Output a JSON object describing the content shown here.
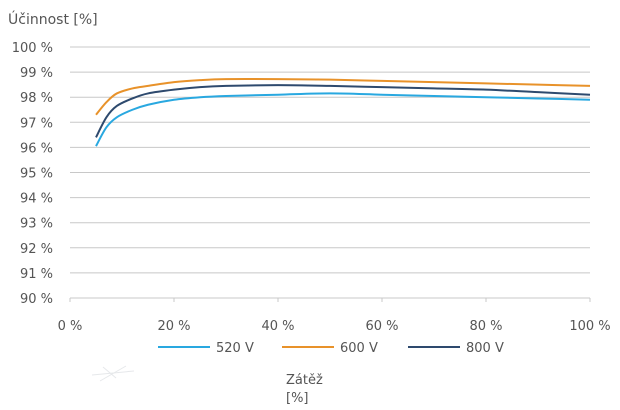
{
  "chart_data": {
    "type": "line",
    "ylabel": "Účinnost [%]",
    "xlabel_line1": "Zátěž",
    "xlabel_line2": "[%]",
    "xlim": [
      0,
      100
    ],
    "ylim": [
      90,
      100
    ],
    "x_ticks": [
      0,
      20,
      40,
      60,
      80,
      100
    ],
    "x_tick_labels": [
      "0 %",
      "20 %",
      "40 %",
      "60 %",
      "80 %",
      "100 %"
    ],
    "y_ticks": [
      90,
      91,
      92,
      93,
      94,
      95,
      96,
      97,
      98,
      99,
      100
    ],
    "y_tick_labels": [
      "90 %",
      "91 %",
      "92 %",
      "93 %",
      "94 %",
      "95 %",
      "96 %",
      "97 %",
      "98 %",
      "99 %",
      "100 %"
    ],
    "grid": true,
    "legend_position": "bottom",
    "series": [
      {
        "name": "520 V",
        "color": "#29a8e0",
        "points": [
          [
            5,
            96.05
          ],
          [
            7,
            96.8
          ],
          [
            9,
            97.2
          ],
          [
            12,
            97.5
          ],
          [
            15,
            97.7
          ],
          [
            20,
            97.9
          ],
          [
            25,
            98.0
          ],
          [
            30,
            98.05
          ],
          [
            40,
            98.1
          ],
          [
            50,
            98.15
          ],
          [
            60,
            98.1
          ],
          [
            70,
            98.05
          ],
          [
            80,
            98.0
          ],
          [
            90,
            97.95
          ],
          [
            100,
            97.9
          ]
        ]
      },
      {
        "name": "600 V",
        "color": "#e8922a",
        "points": [
          [
            5,
            97.3
          ],
          [
            7,
            97.8
          ],
          [
            9,
            98.15
          ],
          [
            12,
            98.35
          ],
          [
            15,
            98.45
          ],
          [
            20,
            98.6
          ],
          [
            25,
            98.68
          ],
          [
            30,
            98.72
          ],
          [
            40,
            98.72
          ],
          [
            50,
            98.7
          ],
          [
            60,
            98.65
          ],
          [
            70,
            98.6
          ],
          [
            80,
            98.55
          ],
          [
            90,
            98.5
          ],
          [
            100,
            98.45
          ]
        ]
      },
      {
        "name": "800 V",
        "color": "#2e4a6e",
        "points": [
          [
            5,
            96.4
          ],
          [
            7,
            97.2
          ],
          [
            9,
            97.65
          ],
          [
            12,
            97.95
          ],
          [
            15,
            98.15
          ],
          [
            20,
            98.3
          ],
          [
            25,
            98.4
          ],
          [
            30,
            98.45
          ],
          [
            40,
            98.48
          ],
          [
            50,
            98.45
          ],
          [
            60,
            98.4
          ],
          [
            70,
            98.35
          ],
          [
            80,
            98.3
          ],
          [
            90,
            98.2
          ],
          [
            100,
            98.1
          ]
        ]
      }
    ]
  }
}
